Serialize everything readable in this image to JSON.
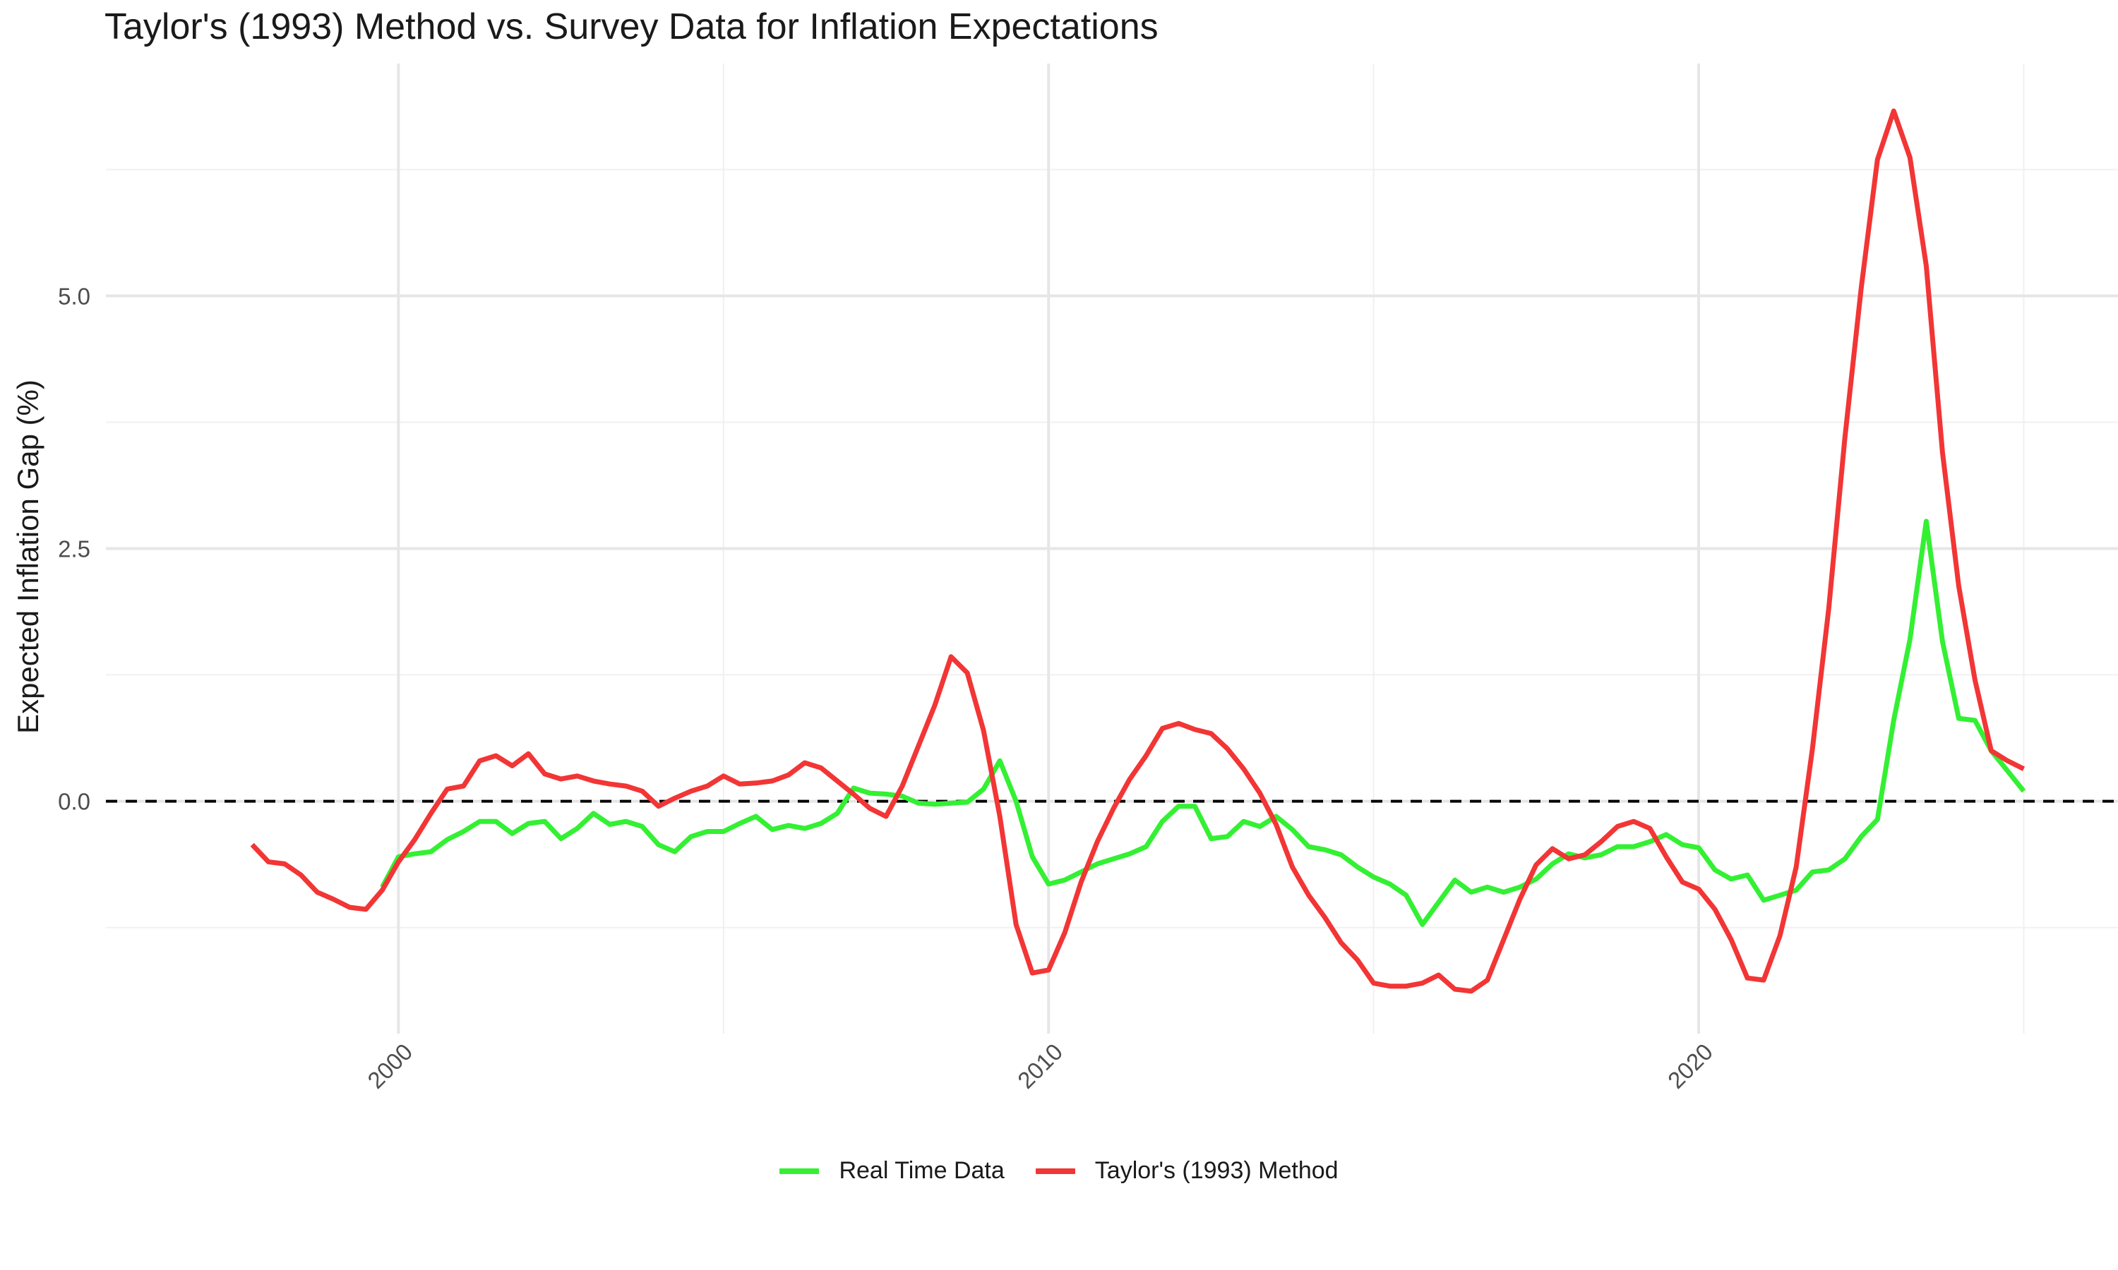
{
  "chart_data": {
    "type": "line",
    "title": "Taylor's (1993) Method vs. Survey Data for Inflation Expectations",
    "xlabel": "",
    "ylabel": "Expected Inflation Gap (%)",
    "xlim": [
      1995.5,
      2026.45
    ],
    "ylim": [
      -2.3,
      7.3
    ],
    "x_ticks": [
      2000,
      2010,
      2020
    ],
    "x_tick_labels": [
      "2000",
      "2010",
      "2020"
    ],
    "y_ticks": [
      0.0,
      2.5,
      5.0
    ],
    "y_tick_labels": [
      "0.0",
      "2.5",
      "5.0"
    ],
    "y_minor_ticks": [
      -1.25,
      1.25,
      3.75,
      6.25
    ],
    "reference_line": {
      "y": 0,
      "style": "dashed",
      "color": "#000000"
    },
    "grid": true,
    "legend_position": "bottom",
    "series": [
      {
        "name": "Real Time Data",
        "color": "#33f033",
        "points": [
          [
            1999.75,
            -0.85
          ],
          [
            2000.0,
            -0.55
          ],
          [
            2000.25,
            -0.52
          ],
          [
            2000.5,
            -0.5
          ],
          [
            2000.75,
            -0.38
          ],
          [
            2001.0,
            -0.3
          ],
          [
            2001.25,
            -0.2
          ],
          [
            2001.5,
            -0.2
          ],
          [
            2001.75,
            -0.32
          ],
          [
            2002.0,
            -0.22
          ],
          [
            2002.25,
            -0.2
          ],
          [
            2002.5,
            -0.37
          ],
          [
            2002.75,
            -0.27
          ],
          [
            2003.0,
            -0.12
          ],
          [
            2003.25,
            -0.23
          ],
          [
            2003.5,
            -0.2
          ],
          [
            2003.75,
            -0.25
          ],
          [
            2004.0,
            -0.43
          ],
          [
            2004.25,
            -0.5
          ],
          [
            2004.5,
            -0.35
          ],
          [
            2004.75,
            -0.3
          ],
          [
            2005.0,
            -0.3
          ],
          [
            2005.25,
            -0.22
          ],
          [
            2005.5,
            -0.15
          ],
          [
            2005.75,
            -0.28
          ],
          [
            2006.0,
            -0.24
          ],
          [
            2006.25,
            -0.27
          ],
          [
            2006.5,
            -0.22
          ],
          [
            2006.75,
            -0.12
          ],
          [
            2007.0,
            0.13
          ],
          [
            2007.25,
            0.08
          ],
          [
            2007.5,
            0.07
          ],
          [
            2007.75,
            0.05
          ],
          [
            2008.0,
            -0.02
          ],
          [
            2008.25,
            -0.03
          ],
          [
            2008.5,
            -0.02
          ],
          [
            2008.75,
            -0.01
          ],
          [
            2009.0,
            0.12
          ],
          [
            2009.25,
            0.4
          ],
          [
            2009.5,
            0.0
          ],
          [
            2009.75,
            -0.55
          ],
          [
            2010.0,
            -0.82
          ],
          [
            2010.25,
            -0.78
          ],
          [
            2010.5,
            -0.7
          ],
          [
            2010.75,
            -0.62
          ],
          [
            2011.0,
            -0.57
          ],
          [
            2011.25,
            -0.52
          ],
          [
            2011.5,
            -0.45
          ],
          [
            2011.75,
            -0.2
          ],
          [
            2012.0,
            -0.05
          ],
          [
            2012.25,
            -0.05
          ],
          [
            2012.5,
            -0.37
          ],
          [
            2012.75,
            -0.35
          ],
          [
            2013.0,
            -0.2
          ],
          [
            2013.25,
            -0.25
          ],
          [
            2013.5,
            -0.15
          ],
          [
            2013.75,
            -0.28
          ],
          [
            2014.0,
            -0.45
          ],
          [
            2014.25,
            -0.48
          ],
          [
            2014.5,
            -0.53
          ],
          [
            2014.75,
            -0.65
          ],
          [
            2015.0,
            -0.75
          ],
          [
            2015.25,
            -0.82
          ],
          [
            2015.5,
            -0.93
          ],
          [
            2015.75,
            -1.22
          ],
          [
            2016.0,
            -1.0
          ],
          [
            2016.25,
            -0.78
          ],
          [
            2016.5,
            -0.9
          ],
          [
            2016.75,
            -0.85
          ],
          [
            2017.0,
            -0.9
          ],
          [
            2017.25,
            -0.85
          ],
          [
            2017.5,
            -0.77
          ],
          [
            2017.75,
            -0.62
          ],
          [
            2018.0,
            -0.52
          ],
          [
            2018.25,
            -0.56
          ],
          [
            2018.5,
            -0.53
          ],
          [
            2018.75,
            -0.45
          ],
          [
            2019.0,
            -0.45
          ],
          [
            2019.25,
            -0.4
          ],
          [
            2019.5,
            -0.33
          ],
          [
            2019.75,
            -0.43
          ],
          [
            2020.0,
            -0.46
          ],
          [
            2020.25,
            -0.68
          ],
          [
            2020.5,
            -0.77
          ],
          [
            2020.75,
            -0.73
          ],
          [
            2021.0,
            -0.98
          ],
          [
            2021.25,
            -0.93
          ],
          [
            2021.5,
            -0.88
          ],
          [
            2021.75,
            -0.7
          ],
          [
            2022.0,
            -0.68
          ],
          [
            2022.25,
            -0.57
          ],
          [
            2022.5,
            -0.35
          ],
          [
            2022.75,
            -0.18
          ],
          [
            2023.0,
            0.8
          ],
          [
            2023.25,
            1.6
          ],
          [
            2023.5,
            2.77
          ],
          [
            2023.75,
            1.58
          ],
          [
            2024.0,
            0.82
          ],
          [
            2024.25,
            0.8
          ],
          [
            2024.5,
            0.5
          ],
          [
            2024.75,
            0.3
          ],
          [
            2025.0,
            0.1
          ]
        ]
      },
      {
        "name": "Taylor's (1993) Method",
        "color": "#f23535",
        "points": [
          [
            1997.75,
            -0.43
          ],
          [
            1998.0,
            -0.6
          ],
          [
            1998.25,
            -0.62
          ],
          [
            1998.5,
            -0.73
          ],
          [
            1998.75,
            -0.9
          ],
          [
            1999.0,
            -0.97
          ],
          [
            1999.25,
            -1.05
          ],
          [
            1999.5,
            -1.07
          ],
          [
            1999.75,
            -0.88
          ],
          [
            2000.0,
            -0.6
          ],
          [
            2000.25,
            -0.38
          ],
          [
            2000.5,
            -0.12
          ],
          [
            2000.75,
            0.12
          ],
          [
            2001.0,
            0.15
          ],
          [
            2001.25,
            0.4
          ],
          [
            2001.5,
            0.45
          ],
          [
            2001.75,
            0.35
          ],
          [
            2002.0,
            0.47
          ],
          [
            2002.25,
            0.27
          ],
          [
            2002.5,
            0.22
          ],
          [
            2002.75,
            0.25
          ],
          [
            2003.0,
            0.2
          ],
          [
            2003.25,
            0.17
          ],
          [
            2003.5,
            0.15
          ],
          [
            2003.75,
            0.1
          ],
          [
            2004.0,
            -0.05
          ],
          [
            2004.25,
            0.03
          ],
          [
            2004.5,
            0.1
          ],
          [
            2004.75,
            0.15
          ],
          [
            2005.0,
            0.25
          ],
          [
            2005.25,
            0.17
          ],
          [
            2005.5,
            0.18
          ],
          [
            2005.75,
            0.2
          ],
          [
            2006.0,
            0.26
          ],
          [
            2006.25,
            0.38
          ],
          [
            2006.5,
            0.33
          ],
          [
            2006.75,
            0.2
          ],
          [
            2007.0,
            0.07
          ],
          [
            2007.25,
            -0.07
          ],
          [
            2007.5,
            -0.15
          ],
          [
            2007.75,
            0.15
          ],
          [
            2008.0,
            0.55
          ],
          [
            2008.25,
            0.95
          ],
          [
            2008.5,
            1.43
          ],
          [
            2008.75,
            1.27
          ],
          [
            2009.0,
            0.7
          ],
          [
            2009.25,
            -0.15
          ],
          [
            2009.5,
            -1.22
          ],
          [
            2009.75,
            -1.7
          ],
          [
            2010.0,
            -1.67
          ],
          [
            2010.25,
            -1.3
          ],
          [
            2010.5,
            -0.8
          ],
          [
            2010.75,
            -0.4
          ],
          [
            2011.0,
            -0.07
          ],
          [
            2011.25,
            0.22
          ],
          [
            2011.5,
            0.45
          ],
          [
            2011.75,
            0.72
          ],
          [
            2012.0,
            0.77
          ],
          [
            2012.25,
            0.71
          ],
          [
            2012.5,
            0.67
          ],
          [
            2012.75,
            0.52
          ],
          [
            2013.0,
            0.32
          ],
          [
            2013.25,
            0.08
          ],
          [
            2013.5,
            -0.23
          ],
          [
            2013.75,
            -0.65
          ],
          [
            2014.0,
            -0.93
          ],
          [
            2014.25,
            -1.15
          ],
          [
            2014.5,
            -1.4
          ],
          [
            2014.75,
            -1.57
          ],
          [
            2015.0,
            -1.8
          ],
          [
            2015.25,
            -1.83
          ],
          [
            2015.5,
            -1.83
          ],
          [
            2015.75,
            -1.8
          ],
          [
            2016.0,
            -1.72
          ],
          [
            2016.25,
            -1.86
          ],
          [
            2016.5,
            -1.88
          ],
          [
            2016.75,
            -1.77
          ],
          [
            2017.0,
            -1.37
          ],
          [
            2017.25,
            -0.97
          ],
          [
            2017.5,
            -0.63
          ],
          [
            2017.75,
            -0.47
          ],
          [
            2018.0,
            -0.57
          ],
          [
            2018.25,
            -0.53
          ],
          [
            2018.5,
            -0.4
          ],
          [
            2018.75,
            -0.25
          ],
          [
            2019.0,
            -0.2
          ],
          [
            2019.25,
            -0.27
          ],
          [
            2019.5,
            -0.55
          ],
          [
            2019.75,
            -0.8
          ],
          [
            2020.0,
            -0.87
          ],
          [
            2020.25,
            -1.07
          ],
          [
            2020.5,
            -1.37
          ],
          [
            2020.75,
            -1.75
          ],
          [
            2021.0,
            -1.77
          ],
          [
            2021.25,
            -1.33
          ],
          [
            2021.5,
            -0.65
          ],
          [
            2021.75,
            0.52
          ],
          [
            2022.0,
            1.9
          ],
          [
            2022.25,
            3.6
          ],
          [
            2022.5,
            5.08
          ],
          [
            2022.75,
            6.35
          ],
          [
            2023.0,
            6.83
          ],
          [
            2023.25,
            6.37
          ],
          [
            2023.5,
            5.3
          ],
          [
            2023.75,
            3.45
          ],
          [
            2024.0,
            2.13
          ],
          [
            2024.25,
            1.2
          ],
          [
            2024.5,
            0.5
          ],
          [
            2024.75,
            0.4
          ],
          [
            2025.0,
            0.32
          ]
        ]
      }
    ]
  }
}
